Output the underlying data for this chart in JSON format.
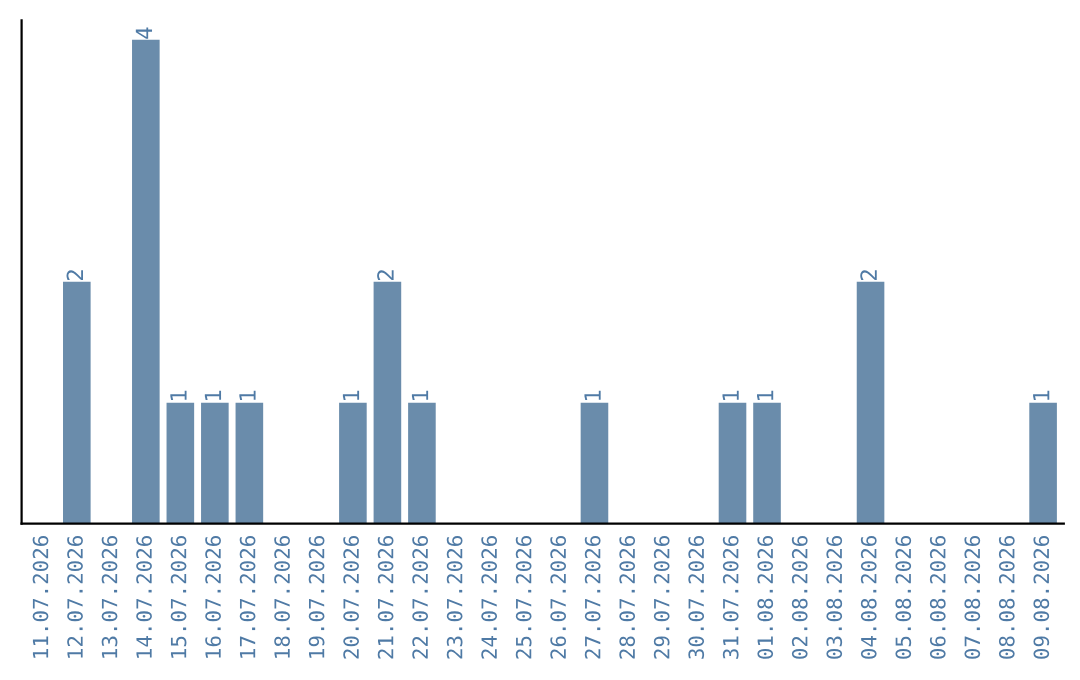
{
  "chart_data": {
    "type": "bar",
    "categories": [
      "11.07.2026",
      "12.07.2026",
      "13.07.2026",
      "14.07.2026",
      "15.07.2026",
      "16.07.2026",
      "17.07.2026",
      "18.07.2026",
      "19.07.2026",
      "20.07.2026",
      "21.07.2026",
      "22.07.2026",
      "23.07.2026",
      "24.07.2026",
      "25.07.2026",
      "26.07.2026",
      "27.07.2026",
      "28.07.2026",
      "29.07.2026",
      "30.07.2026",
      "31.07.2026",
      "01.08.2026",
      "02.08.2026",
      "03.08.2026",
      "04.08.2026",
      "05.08.2026",
      "06.08.2026",
      "07.08.2026",
      "08.08.2026",
      "09.08.2026"
    ],
    "values": [
      0,
      2,
      0,
      4,
      1,
      1,
      1,
      0,
      0,
      1,
      2,
      1,
      0,
      0,
      0,
      0,
      1,
      0,
      0,
      0,
      1,
      1,
      0,
      0,
      2,
      0,
      0,
      0,
      0,
      1
    ],
    "value_labels": [
      null,
      "2",
      null,
      "4",
      "1",
      "1",
      "1",
      null,
      null,
      "1",
      "2",
      "1",
      null,
      null,
      null,
      null,
      "1",
      null,
      null,
      null,
      "1",
      "1",
      null,
      null,
      "2",
      null,
      null,
      null,
      null,
      "1"
    ],
    "color": "#6a8cab",
    "grid": false,
    "legend": false
  }
}
